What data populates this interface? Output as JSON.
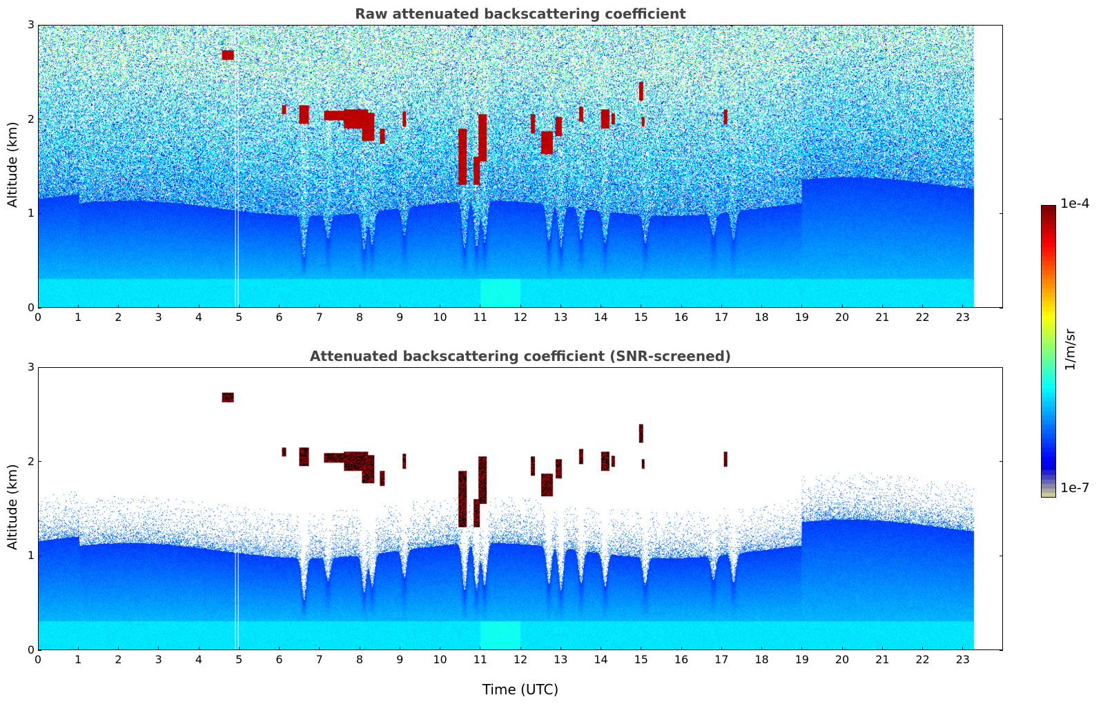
{
  "chart_data": [
    {
      "type": "heatmap",
      "title": "Raw attenuated backscattering coefficient",
      "xlabel": "",
      "ylabel": "Altitude (km)",
      "xlim": [
        0,
        24
      ],
      "ylim": [
        0,
        3
      ],
      "data_end_x": 23.3,
      "xticks": [
        "0",
        "1",
        "2",
        "3",
        "4",
        "5",
        "6",
        "7",
        "8",
        "9",
        "10",
        "11",
        "12",
        "13",
        "14",
        "15",
        "16",
        "17",
        "18",
        "19",
        "20",
        "21",
        "22",
        "23"
      ],
      "yticks": [
        "0",
        "1",
        "2",
        "3"
      ],
      "description_features": {
        "boundary_layer_top_km": 1.0,
        "noise_above_boundary_layer": true,
        "cloud_layers_km": [
          1.4,
          2.1
        ]
      }
    },
    {
      "type": "heatmap",
      "title": "Attenuated backscattering coefficient (SNR-screened)",
      "xlabel": "Time (UTC)",
      "ylabel": "Altitude (km)",
      "xlim": [
        0,
        24
      ],
      "ylim": [
        0,
        3
      ],
      "data_end_x": 23.3,
      "xticks": [
        "0",
        "1",
        "2",
        "3",
        "4",
        "5",
        "6",
        "7",
        "8",
        "9",
        "10",
        "11",
        "12",
        "13",
        "14",
        "15",
        "16",
        "17",
        "18",
        "19",
        "20",
        "21",
        "22",
        "23"
      ],
      "yticks": [
        "0",
        "1",
        "2",
        "3"
      ]
    }
  ],
  "colorbar": {
    "min_label": "1e-7",
    "max_label": "1e-4",
    "unit": "1/m/sr",
    "scale": "log",
    "colormap": "jet"
  },
  "clouds": [
    {
      "t": 4.7,
      "h": 2.68,
      "dt": 0.15,
      "dh": 0.05
    },
    {
      "t": 6.1,
      "h": 2.1,
      "dt": 0.05,
      "dh": 0.05
    },
    {
      "t": 6.6,
      "h": 2.05,
      "dt": 0.12,
      "dh": 0.1
    },
    {
      "t": 7.4,
      "h": 2.04,
      "dt": 0.3,
      "dh": 0.05
    },
    {
      "t": 7.9,
      "h": 2.0,
      "dt": 0.3,
      "dh": 0.1
    },
    {
      "t": 8.2,
      "h": 1.92,
      "dt": 0.15,
      "dh": 0.15
    },
    {
      "t": 8.55,
      "h": 1.82,
      "dt": 0.06,
      "dh": 0.08
    },
    {
      "t": 9.1,
      "h": 2.0,
      "dt": 0.05,
      "dh": 0.08
    },
    {
      "t": 10.55,
      "h": 1.6,
      "dt": 0.1,
      "dh": 0.3
    },
    {
      "t": 10.9,
      "h": 1.45,
      "dt": 0.08,
      "dh": 0.15
    },
    {
      "t": 11.05,
      "h": 1.8,
      "dt": 0.1,
      "dh": 0.25
    },
    {
      "t": 12.3,
      "h": 1.95,
      "dt": 0.05,
      "dh": 0.1
    },
    {
      "t": 12.65,
      "h": 1.75,
      "dt": 0.15,
      "dh": 0.12
    },
    {
      "t": 12.95,
      "h": 1.92,
      "dt": 0.08,
      "dh": 0.1
    },
    {
      "t": 13.5,
      "h": 2.05,
      "dt": 0.05,
      "dh": 0.08
    },
    {
      "t": 14.1,
      "h": 2.0,
      "dt": 0.1,
      "dh": 0.1
    },
    {
      "t": 14.3,
      "h": 2.0,
      "dt": 0.04,
      "dh": 0.06
    },
    {
      "t": 15.0,
      "h": 2.3,
      "dt": 0.05,
      "dh": 0.1
    },
    {
      "t": 15.05,
      "h": 1.97,
      "dt": 0.03,
      "dh": 0.05
    },
    {
      "t": 17.1,
      "h": 2.02,
      "dt": 0.04,
      "dh": 0.08
    }
  ],
  "dips": [
    {
      "t": 6.6,
      "d": 0.45
    },
    {
      "t": 7.2,
      "d": 0.25
    },
    {
      "t": 8.1,
      "d": 0.4
    },
    {
      "t": 8.3,
      "d": 0.35
    },
    {
      "t": 9.1,
      "d": 0.3
    },
    {
      "t": 10.6,
      "d": 0.5
    },
    {
      "t": 10.9,
      "d": 0.5
    },
    {
      "t": 11.1,
      "d": 0.45
    },
    {
      "t": 12.7,
      "d": 0.4
    },
    {
      "t": 13.0,
      "d": 0.45
    },
    {
      "t": 13.5,
      "d": 0.35
    },
    {
      "t": 14.1,
      "d": 0.35
    },
    {
      "t": 15.1,
      "d": 0.3
    },
    {
      "t": 16.8,
      "d": 0.25
    },
    {
      "t": 17.3,
      "d": 0.3
    }
  ]
}
